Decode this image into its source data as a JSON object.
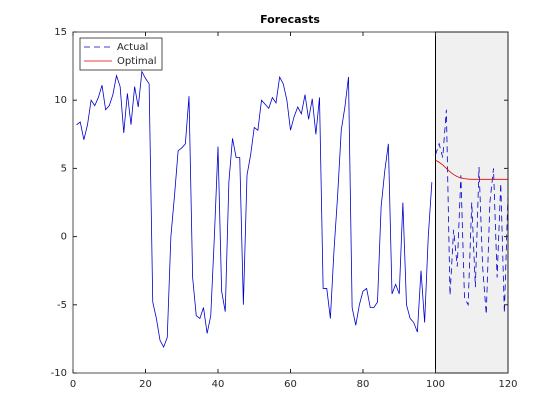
{
  "chart_data": {
    "type": "line",
    "title": "Forecasts",
    "xlim": [
      0,
      120
    ],
    "ylim": [
      -10,
      15
    ],
    "xticks": [
      0,
      20,
      40,
      60,
      80,
      100,
      120
    ],
    "yticks": [
      -10,
      -5,
      0,
      5,
      10,
      15
    ],
    "shade": [
      100,
      120
    ],
    "shade_color": "#f0f0f0",
    "legend": "top-left",
    "series": [
      {
        "color": "#0000cc",
        "dash": false,
        "x": [
          1,
          2,
          3,
          4,
          5,
          6,
          7,
          8,
          9,
          10,
          11,
          12,
          13,
          14,
          15,
          16,
          17,
          18,
          19,
          20,
          21,
          22,
          23,
          24,
          25,
          26,
          27,
          28,
          29,
          30,
          31,
          32,
          33,
          34,
          35,
          36,
          37,
          38,
          39,
          40,
          41,
          42,
          43,
          44,
          45,
          46,
          47,
          48,
          49,
          50,
          51,
          52,
          53,
          54,
          55,
          56,
          57,
          58,
          59,
          60,
          61,
          62,
          63,
          64,
          65,
          66,
          67,
          68,
          69,
          70,
          71,
          72,
          73,
          74,
          75,
          76,
          77,
          78,
          79,
          80,
          81,
          82,
          83,
          84,
          85,
          86,
          87,
          88,
          89,
          90,
          91,
          92,
          93,
          94,
          95,
          96,
          97,
          98,
          99
        ],
        "values": [
          8.2,
          8.4,
          7.1,
          8.2,
          10,
          9.6,
          10.2,
          11.1,
          9.3,
          9.6,
          10.4,
          11.8,
          11,
          7.6,
          10.5,
          8.2,
          11,
          9.5,
          12.1,
          11.6,
          11.2,
          -4.8,
          -6,
          -7.6,
          -8.1,
          -7.4,
          0,
          3,
          6.3,
          6.5,
          6.8,
          10.3,
          -3,
          -5.8,
          -6,
          -5.2,
          -7.1,
          -5.8,
          0,
          6.6,
          -4,
          -5.5,
          4,
          7.2,
          5.8,
          5.8,
          -5,
          4.5,
          6,
          8,
          7.8,
          10,
          9.7,
          9.4,
          10.2,
          9.8,
          11.7,
          11.2,
          10,
          7.8,
          8.8,
          9.5,
          9,
          10.4,
          8.6,
          10.1,
          7.5,
          10.2,
          -3.8,
          -3.8,
          -6,
          -1,
          3,
          7.8,
          9.5,
          11.7,
          -5.2,
          -6.5,
          -5,
          -4,
          -3.8,
          -5.2,
          -5.2,
          -4.8,
          2.2,
          4.8,
          6.8,
          -4.2,
          -3.5,
          -4.2,
          2.5,
          -5,
          -6,
          -6.3,
          -7,
          -2.5,
          -6.3,
          0,
          4
        ]
      },
      {
        "name": "Actual",
        "color": "#0000cc",
        "dash": true,
        "x": [
          100,
          101,
          102,
          103,
          104,
          105,
          106,
          107,
          108,
          109,
          110,
          111,
          112,
          113,
          114,
          115,
          116,
          117,
          118,
          119,
          120
        ],
        "values": [
          6,
          6.8,
          5.8,
          9.3,
          -4.3,
          0.5,
          -2.2,
          4.5,
          -4.5,
          -5,
          2.5,
          -3.7,
          5.1,
          -2.2,
          -5.7,
          2.5,
          5,
          -3,
          3.9,
          -5.6,
          3.2
        ]
      },
      {
        "name": "Optimal",
        "color": "#dd0000",
        "dash": false,
        "x": [
          100,
          101,
          102,
          103,
          104,
          105,
          106,
          107,
          108,
          109,
          110,
          111,
          112,
          113,
          114,
          115,
          116,
          117,
          118,
          119,
          120
        ],
        "values": [
          5.6,
          5.45,
          5.25,
          5,
          4.75,
          4.55,
          4.4,
          4.3,
          4.25,
          4.22,
          4.2,
          4.2,
          4.2,
          4.2,
          4.2,
          4.2,
          4.2,
          4.2,
          4.2,
          4.2,
          4.2
        ]
      }
    ]
  }
}
